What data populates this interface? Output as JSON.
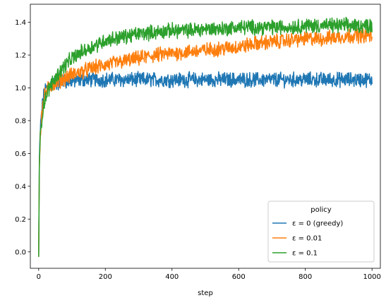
{
  "chart_data": {
    "type": "line",
    "title": "",
    "xlabel": "step",
    "ylabel": "",
    "xlim": [
      -25,
      1025
    ],
    "ylim": [
      -0.1,
      1.51
    ],
    "xticks": [
      0,
      200,
      400,
      600,
      800,
      1000
    ],
    "yticks": [
      0.0,
      0.2,
      0.4,
      0.6,
      0.8,
      1.0,
      1.2,
      1.4
    ],
    "ytick_labels": [
      "0.0",
      "0.2",
      "0.4",
      "0.6",
      "0.8",
      "1.0",
      "1.2",
      "1.4"
    ],
    "grid": false,
    "legend": {
      "title": "policy",
      "placement": "lower right"
    },
    "series": [
      {
        "name": "ε = 0 (greedy)",
        "color": "#1f77b4",
        "x": [
          0,
          2,
          5,
          10,
          15,
          20,
          30,
          40,
          50,
          60,
          80,
          100,
          130,
          160,
          200,
          250,
          300,
          350,
          400,
          450,
          500,
          550,
          600,
          650,
          700,
          750,
          800,
          850,
          900,
          950,
          1000
        ],
        "values": [
          -0.03,
          0.55,
          0.75,
          0.88,
          0.95,
          0.99,
          1.01,
          1.02,
          1.03,
          1.03,
          1.04,
          1.04,
          1.05,
          1.05,
          1.05,
          1.05,
          1.05,
          1.05,
          1.05,
          1.05,
          1.05,
          1.05,
          1.05,
          1.05,
          1.05,
          1.05,
          1.05,
          1.05,
          1.05,
          1.05,
          1.05
        ]
      },
      {
        "name": "ε = 0.01",
        "color": "#ff7f0e",
        "x": [
          0,
          2,
          5,
          10,
          15,
          20,
          30,
          40,
          50,
          60,
          80,
          100,
          130,
          160,
          200,
          250,
          300,
          350,
          400,
          450,
          500,
          550,
          600,
          650,
          700,
          750,
          800,
          850,
          900,
          950,
          1000
        ],
        "values": [
          -0.03,
          0.52,
          0.72,
          0.86,
          0.93,
          0.97,
          1.0,
          1.02,
          1.03,
          1.04,
          1.06,
          1.08,
          1.1,
          1.12,
          1.14,
          1.16,
          1.18,
          1.2,
          1.21,
          1.22,
          1.23,
          1.24,
          1.25,
          1.27,
          1.28,
          1.29,
          1.3,
          1.3,
          1.31,
          1.32,
          1.32
        ]
      },
      {
        "name": "ε = 0.1",
        "color": "#2ca02c",
        "x": [
          0,
          2,
          5,
          10,
          15,
          20,
          30,
          40,
          50,
          60,
          80,
          100,
          130,
          160,
          200,
          250,
          300,
          350,
          400,
          450,
          500,
          550,
          600,
          650,
          700,
          750,
          800,
          850,
          900,
          950,
          1000
        ],
        "values": [
          -0.03,
          0.5,
          0.7,
          0.82,
          0.9,
          0.94,
          0.99,
          1.03,
          1.06,
          1.09,
          1.14,
          1.18,
          1.22,
          1.25,
          1.29,
          1.31,
          1.33,
          1.34,
          1.35,
          1.35,
          1.36,
          1.36,
          1.37,
          1.37,
          1.37,
          1.37,
          1.38,
          1.38,
          1.38,
          1.38,
          1.38
        ]
      }
    ]
  }
}
